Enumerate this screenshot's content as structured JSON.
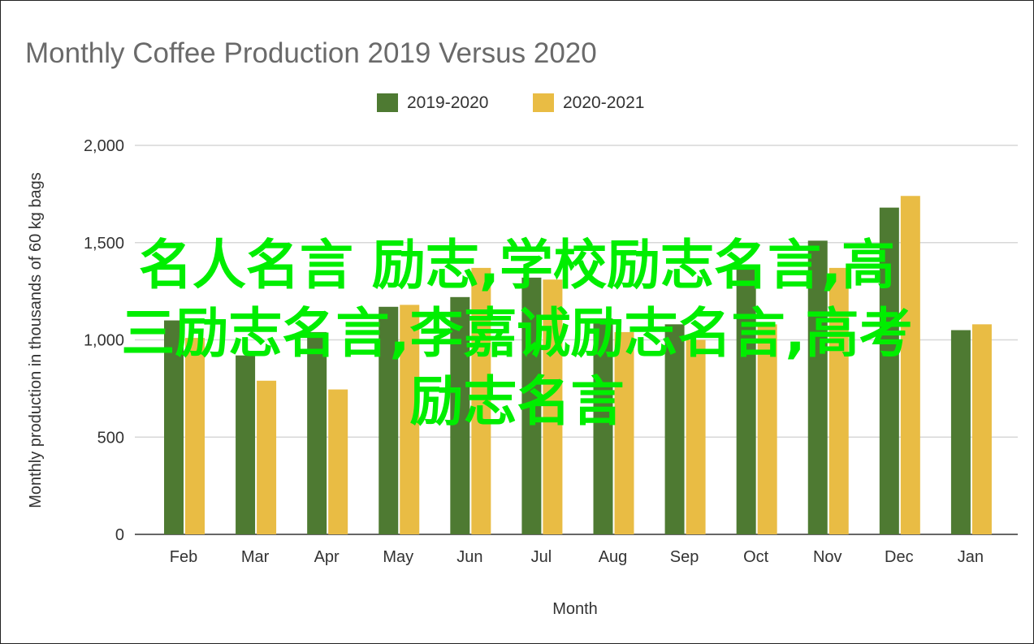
{
  "chart_data": {
    "type": "bar",
    "title": "Monthly Coffee Production 2019 Versus 2020",
    "xlabel": "Month",
    "ylabel": "Monthly production in thousands of 60 kg bags",
    "ylim": [
      0,
      2000
    ],
    "yticks": [
      0,
      500,
      1000,
      1500,
      2000
    ],
    "ytick_labels": [
      "0",
      "500",
      "1,000",
      "1,500",
      "2,000"
    ],
    "grid": true,
    "legend_position": "top-center",
    "categories": [
      "Feb",
      "Mar",
      "Apr",
      "May",
      "Jun",
      "Jul",
      "Aug",
      "Sep",
      "Oct",
      "Nov",
      "Dec",
      "Jan"
    ],
    "series": [
      {
        "name": "2019-2020",
        "color": "#4e7a32",
        "values": [
          1100,
          920,
          1040,
          1170,
          1220,
          1320,
          1110,
          1080,
          1370,
          1510,
          1680,
          1050
        ]
      },
      {
        "name": "2020-2021",
        "color": "#e9bc44",
        "values": [
          1010,
          790,
          745,
          1180,
          1370,
          1310,
          1040,
          1000,
          1080,
          1370,
          1740,
          1080
        ]
      }
    ]
  },
  "overlay": {
    "color": "#00ee00",
    "lines": [
      "名人名言 励志,学校励志名言,高",
      "三励志名言,李嘉诚励志名言,高考",
      "励志名言"
    ]
  }
}
